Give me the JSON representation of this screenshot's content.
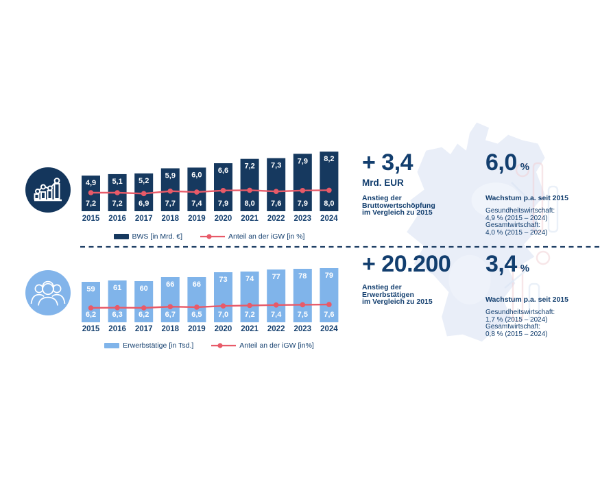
{
  "colors": {
    "navy_bar": "#16395f",
    "navy_text": "#123e6e",
    "light_blue": "#80b4ea",
    "red": "#e85a68",
    "white": "#ffffff",
    "map_fill": "#e9eef8",
    "divider": "#1d3d63"
  },
  "icons": {
    "top_badge": "bar-chart-growth-icon",
    "bottom_badge": "people-group-icon",
    "background": "germany-map-silhouette"
  },
  "chart_data": [
    {
      "type": "bar+line",
      "name": "bws",
      "categories": [
        "2015",
        "2016",
        "2017",
        "2018",
        "2019",
        "2020",
        "2021",
        "2022",
        "2023",
        "2024"
      ],
      "series": [
        {
          "name": "BWS [in Mrd. €]",
          "type": "bar",
          "values": [
            4.9,
            5.1,
            5.2,
            5.9,
            6.0,
            6.6,
            7.2,
            7.3,
            7.9,
            8.2
          ],
          "labels": [
            "4,9",
            "5,1",
            "5,2",
            "5,9",
            "6,0",
            "6,6",
            "7,2",
            "7,3",
            "7,9",
            "8,2"
          ]
        },
        {
          "name": "Anteil an der iGW [in %]",
          "type": "line",
          "values": [
            7.2,
            7.2,
            6.9,
            7.7,
            7.4,
            7.9,
            8.0,
            7.6,
            7.9,
            8.0
          ],
          "labels": [
            "7,2",
            "7,2",
            "6,9",
            "7,7",
            "7,4",
            "7,9",
            "8,0",
            "7,6",
            "7,9",
            "8,0"
          ]
        }
      ],
      "legend_position": "bottom",
      "grid": false
    },
    {
      "type": "bar+line",
      "name": "erwerbstaetige",
      "categories": [
        "2015",
        "2016",
        "2017",
        "2018",
        "2019",
        "2020",
        "2021",
        "2022",
        "2023",
        "2024"
      ],
      "series": [
        {
          "name": "Erwerbstätige [in Tsd.]",
          "type": "bar",
          "values": [
            59,
            61,
            60,
            66,
            66,
            73,
            74,
            77,
            78,
            79
          ],
          "labels": [
            "59",
            "61",
            "60",
            "66",
            "66",
            "73",
            "74",
            "77",
            "78",
            "79"
          ]
        },
        {
          "name": "Anteil an der iGW [in%]",
          "type": "line",
          "values": [
            6.2,
            6.3,
            6.2,
            6.7,
            6.5,
            7.0,
            7.2,
            7.4,
            7.5,
            7.6
          ],
          "labels": [
            "6,2",
            "6,3",
            "6,2",
            "6,7",
            "6,5",
            "7,0",
            "7,2",
            "7,4",
            "7,5",
            "7,6"
          ]
        }
      ],
      "legend_position": "bottom",
      "grid": false
    }
  ],
  "kpi_blocks": [
    {
      "big": "+ 3,4",
      "unit": "Mrd. EUR",
      "desc_lines": [
        "Anstieg der",
        "Bruttowertschöpfung",
        "im Vergleich zu 2015"
      ]
    },
    {
      "big": "6,0",
      "pct": "%",
      "subtitle": "Wachstum p.a. seit 2015",
      "detail_lines": [
        "Gesundheitswirtschaft:",
        "4,9 % (2015 – 2024)",
        "Gesamtwirtschaft:",
        "4,0 % (2015 – 2024)"
      ]
    },
    {
      "big": "+ 20.200",
      "desc_lines": [
        "Anstieg der",
        "Erwerbstätigen",
        "im Vergleich zu 2015"
      ]
    },
    {
      "big": "3,4",
      "pct": "%",
      "subtitle": "Wachstum p.a. seit 2015",
      "detail_lines": [
        "Gesundheitswirtschaft:",
        "1,7 % (2015 – 2024)",
        "Gesamtwirtschaft:",
        "0,8 % (2015 – 2024)"
      ]
    }
  ]
}
